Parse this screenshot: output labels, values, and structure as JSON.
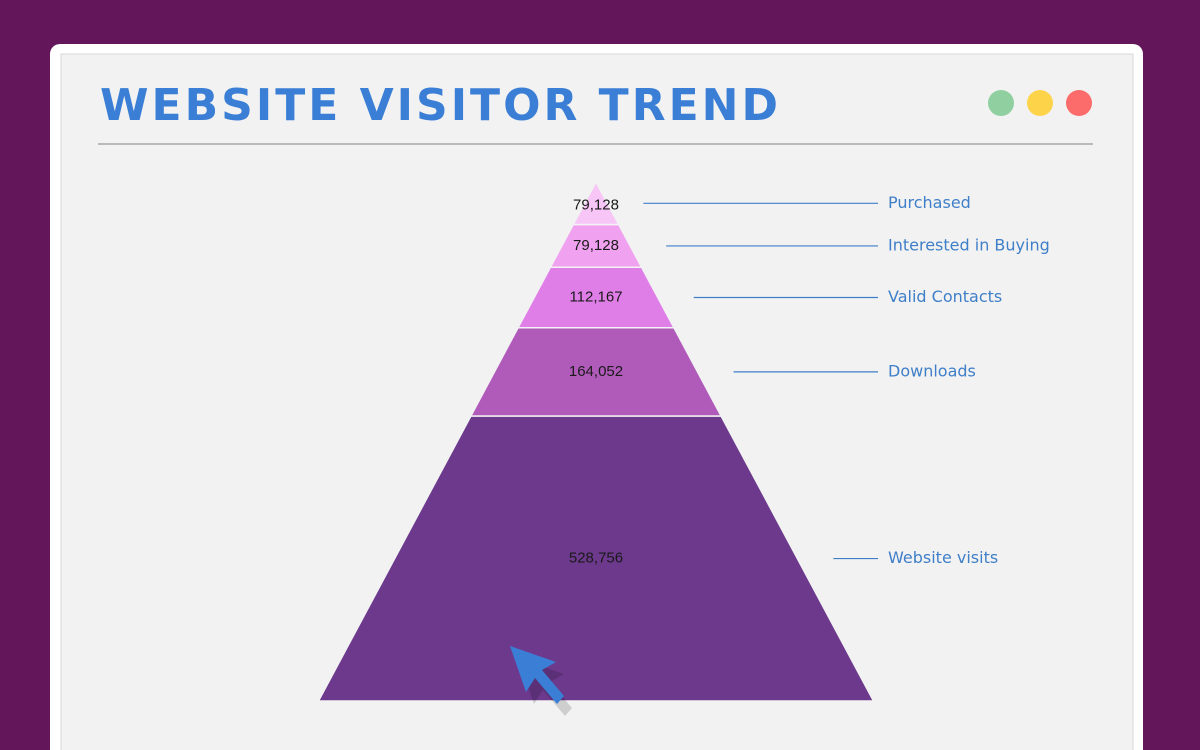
{
  "chart_data": {
    "type": "pyramid",
    "title": "WEBSITE VISITOR TREND",
    "categories": [
      "Purchased",
      "Interested in Buying",
      "Valid Contacts",
      "Downloads",
      "Website visits"
    ],
    "values": [
      79128,
      79128,
      112167,
      164052,
      528756
    ],
    "value_labels": [
      "79,128",
      "79,128",
      "112,167",
      "164,052",
      "528,756"
    ],
    "colors": [
      "#f7c6f7",
      "#f0a2f0",
      "#e07ee8",
      "#b05ab9",
      "#6c398c"
    ]
  }
}
